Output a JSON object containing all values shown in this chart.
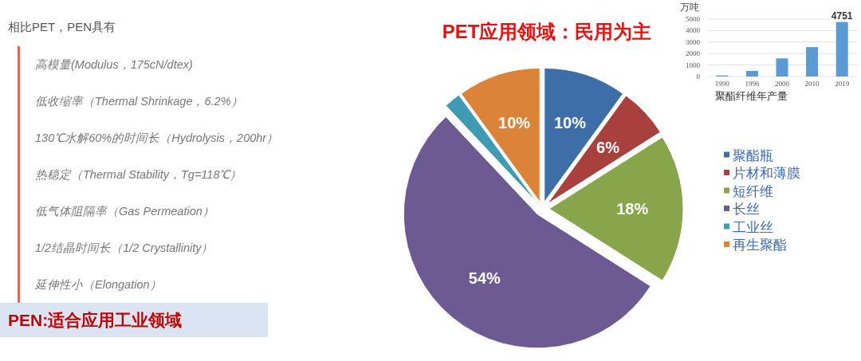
{
  "chart_data": [
    {
      "type": "other",
      "title": "相比PET，PEN具有",
      "subtitle": "PEN:适合应用工业领域",
      "annotations": [
        "高模量(Modulus，175cN/dtex)",
        "低收缩率（Thermal Shrinkage，6.2%）",
        "130℃水解60%的时间长（Hydrolysis，200hr）",
        "热稳定（Thermal Stability，Tg=118℃）",
        "低气体阻隔率（Gas Permeation）",
        "1/2结晶时间长（1/2 Crystallinity）",
        "延伸性小（Elongation）"
      ]
    },
    {
      "type": "pie",
      "title": "PET应用领域：民用为主",
      "categories": [
        "聚酯瓶",
        "片材和薄膜",
        "短纤维",
        "长丝",
        "工业丝",
        "再生聚酯"
      ],
      "values": [
        10,
        6,
        18,
        54,
        2,
        10
      ],
      "colors": [
        "#3d6ea8",
        "#a8403e",
        "#87a54a",
        "#6d5a92",
        "#3f9bb3",
        "#db8439"
      ],
      "value_labels": [
        "10%",
        "6%",
        "18%",
        "54%",
        null,
        "10%"
      ],
      "legend": "right"
    },
    {
      "type": "bar",
      "categories": [
        "1990",
        "1996",
        "2000",
        "2010",
        "2019"
      ],
      "values": [
        90,
        490,
        1580,
        2560,
        4751
      ],
      "color": "#5b9bd5",
      "ylabel": "万吨",
      "xlabel": "聚酯纤维年产量",
      "ylim": [
        0,
        5000
      ],
      "yticks": [
        0,
        1000,
        2000,
        3000,
        4000,
        5000
      ],
      "grid": "y",
      "value_labels": [
        null,
        null,
        null,
        null,
        "4751"
      ]
    }
  ]
}
